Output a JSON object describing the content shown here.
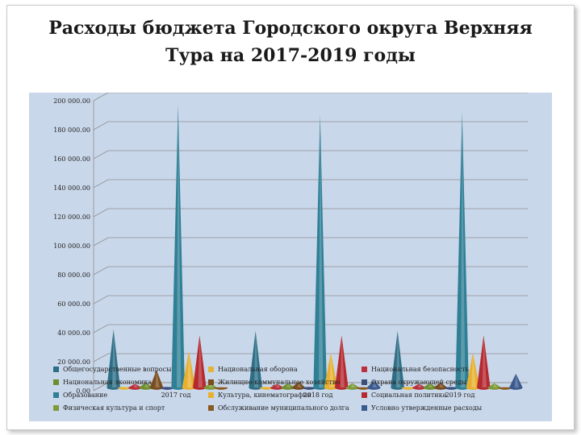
{
  "page": {
    "title": "Расходы бюджета Городского округа Верхняя Тура на 2017-2019 годы"
  },
  "chart_data": {
    "type": "bar",
    "subtype": "3d-cone",
    "categories": [
      "2017 год",
      "2018 год",
      "2019 год"
    ],
    "ylim": [
      0,
      200000
    ],
    "yticks": [
      "0,00",
      "20 000.00",
      "40 000.00",
      "60 000.00",
      "80 000.00",
      "100 000.00",
      "120 000.00",
      "140 000.00",
      "160 000.00",
      "180 000.00",
      "200 000.00"
    ],
    "grid": true,
    "legend_position": "bottom",
    "series": [
      {
        "name": "Общегосударственные вопросы",
        "color": "#2e6f86",
        "values": [
          40000,
          39000,
          39000
        ]
      },
      {
        "name": "Национальная оборона",
        "color": "#e2b43a",
        "values": [
          500,
          500,
          500
        ]
      },
      {
        "name": "Национальная безопасность",
        "color": "#b8313c",
        "values": [
          2500,
          2500,
          2500
        ]
      },
      {
        "name": "Национальная экономика",
        "color": "#6f8f2f",
        "values": [
          3500,
          3000,
          3000
        ]
      },
      {
        "name": "Жилищно-коммунальное хозяйство",
        "color": "#7a4d1e",
        "values": [
          12000,
          4000,
          3500
        ]
      },
      {
        "name": "Охрана окружающей среды",
        "color": "#3a4f7a",
        "values": [
          500,
          500,
          500
        ]
      },
      {
        "name": "Образование",
        "color": "#2f7f95",
        "values": [
          195000,
          188000,
          190000
        ]
      },
      {
        "name": "Культура, кинематография",
        "color": "#e8b030",
        "values": [
          25000,
          24000,
          24000
        ]
      },
      {
        "name": "Социальная политика",
        "color": "#b52a30",
        "values": [
          36000,
          36000,
          36000
        ]
      },
      {
        "name": "Физическая культура и спорт",
        "color": "#7e9a3a",
        "values": [
          3000,
          3000,
          3000
        ]
      },
      {
        "name": "Обслуживание муниципального долга",
        "color": "#8a5a22",
        "values": [
          200,
          200,
          200
        ]
      },
      {
        "name": "Условно утвержденные расходы",
        "color": "#3b5a8e",
        "values": [
          0,
          5000,
          9500
        ]
      }
    ]
  }
}
